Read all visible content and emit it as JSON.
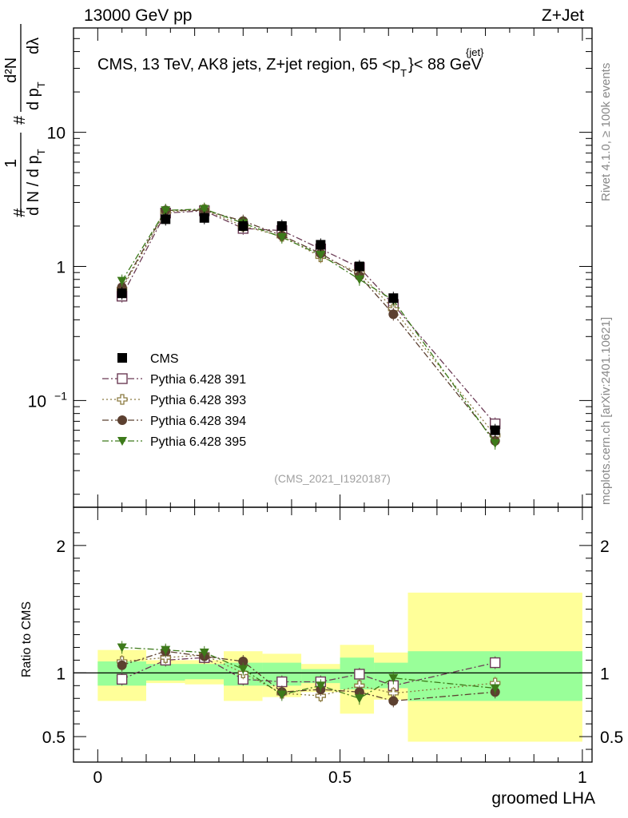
{
  "header": {
    "left": "13000 GeV pp",
    "right": "Z+Jet"
  },
  "side_labels": {
    "rivet": "Rivet 4.1.0, ≥ 100k events",
    "mcplots": "mcplots.cern.ch [arXiv:2401.10621]"
  },
  "chart_data": [
    {
      "type": "line",
      "panel": "main",
      "title": "CMS, 13 TeV, AK8 jets, Z+jet region, 65 <p",
      "title_sup": "{jet}",
      "title_sub": "T",
      "title_end": "}< 88 GeV",
      "ylabel": {
        "hash1": "#",
        "one": "1",
        "denom": "d N / d p",
        "denom_sub": "T",
        "hash2": "#",
        "d2n": "d²N",
        "dpt": "d p",
        "dpt_sub": "T",
        "dlambda": "dλ"
      },
      "yscale": "log",
      "ylim": [
        0.016,
        60
      ],
      "xlim": [
        -0.05,
        1.02
      ],
      "yticks": [
        {
          "v": 10,
          "label": "10"
        },
        {
          "v": 1,
          "label": "1"
        },
        {
          "v": 0.1,
          "label": "10",
          "sup": "−1"
        }
      ],
      "x": [
        0.05,
        0.14,
        0.22,
        0.3,
        0.38,
        0.46,
        0.54,
        0.61,
        0.82
      ],
      "series": [
        {
          "name": "CMS",
          "marker": "filled-square",
          "color": "#000000",
          "line": "none",
          "values": [
            0.63,
            2.25,
            2.3,
            2.0,
            2.0,
            1.45,
            1.0,
            0.58,
            0.06
          ]
        },
        {
          "name": "Pythia 6.428 391",
          "marker": "open-square",
          "color": "#6b3b55",
          "line": "dashdot",
          "values": [
            0.6,
            2.5,
            2.6,
            1.92,
            1.85,
            1.35,
            0.98,
            0.52,
            0.067
          ]
        },
        {
          "name": "Pythia 6.428 393",
          "marker": "open-cross",
          "color": "#8b7a40",
          "line": "dotted",
          "values": [
            0.68,
            2.55,
            2.65,
            2.0,
            1.68,
            1.18,
            0.9,
            0.48,
            0.055
          ]
        },
        {
          "name": "Pythia 6.428 394",
          "marker": "filled-circle",
          "color": "#5c4030",
          "line": "dashdot",
          "values": [
            0.7,
            2.62,
            2.62,
            2.18,
            1.7,
            1.25,
            0.85,
            0.44,
            0.05
          ]
        },
        {
          "name": "Pythia 6.428 395",
          "marker": "filled-triangle-down",
          "color": "#3d7a1a",
          "line": "dashdot",
          "values": [
            0.78,
            2.62,
            2.68,
            2.1,
            1.65,
            1.22,
            0.8,
            0.56,
            0.048
          ]
        }
      ],
      "legend_position": "middle-left",
      "watermark": "(CMS_2021_I1920187)"
    },
    {
      "type": "line",
      "panel": "ratio",
      "ylabel": "Ratio to CMS",
      "xlabel": "groomed LHA",
      "yscale": "linear",
      "ylim": [
        0.3,
        2.3
      ],
      "xlim": [
        -0.05,
        1.02
      ],
      "yticks": [
        {
          "v": 2,
          "label": "2"
        },
        {
          "v": 1,
          "label": "1"
        },
        {
          "v": 0.5,
          "label": "0.5"
        }
      ],
      "xticks": [
        {
          "v": 0,
          "label": "0"
        },
        {
          "v": 0.5,
          "label": "0.5"
        },
        {
          "v": 1,
          "label": "1"
        }
      ],
      "bins": [
        0.0,
        0.1,
        0.18,
        0.26,
        0.34,
        0.42,
        0.5,
        0.57,
        0.64,
        1.0
      ],
      "band_yellow": [
        [
          0.78,
          1.18
        ],
        [
          0.92,
          1.1
        ],
        [
          0.91,
          1.1
        ],
        [
          0.78,
          1.17
        ],
        [
          0.81,
          1.15
        ],
        [
          0.85,
          1.07
        ],
        [
          0.68,
          1.22
        ],
        [
          0.79,
          1.16
        ],
        [
          0.46,
          1.63
        ]
      ],
      "band_green": [
        [
          0.9,
          1.09
        ],
        [
          0.94,
          1.07
        ],
        [
          0.95,
          1.07
        ],
        [
          0.9,
          1.08
        ],
        [
          0.9,
          1.08
        ],
        [
          0.92,
          1.03
        ],
        [
          0.87,
          1.12
        ],
        [
          0.88,
          1.08
        ],
        [
          0.78,
          1.17
        ]
      ],
      "x": [
        0.05,
        0.14,
        0.22,
        0.3,
        0.38,
        0.46,
        0.54,
        0.61,
        0.82
      ],
      "series": [
        {
          "name": "Pythia 6.428 391",
          "marker": "open-square",
          "color": "#6b3b55",
          "line": "dashdot",
          "values": [
            0.95,
            1.1,
            1.12,
            0.95,
            0.93,
            0.93,
            0.99,
            0.9,
            1.08
          ]
        },
        {
          "name": "Pythia 6.428 393",
          "marker": "open-cross",
          "color": "#8b7a40",
          "line": "dotted",
          "values": [
            1.09,
            1.12,
            1.14,
            1.0,
            0.84,
            0.82,
            0.9,
            0.84,
            0.92
          ]
        },
        {
          "name": "Pythia 6.428 394",
          "marker": "filled-circle",
          "color": "#5c4030",
          "line": "dashdot",
          "values": [
            1.06,
            1.17,
            1.13,
            1.09,
            0.85,
            0.87,
            0.85,
            0.78,
            0.85
          ]
        },
        {
          "name": "Pythia 6.428 395",
          "marker": "filled-triangle-down",
          "color": "#3d7a1a",
          "line": "dashdot",
          "values": [
            1.2,
            1.18,
            1.16,
            1.03,
            0.83,
            0.9,
            0.8,
            0.96,
            0.88
          ]
        }
      ]
    }
  ]
}
